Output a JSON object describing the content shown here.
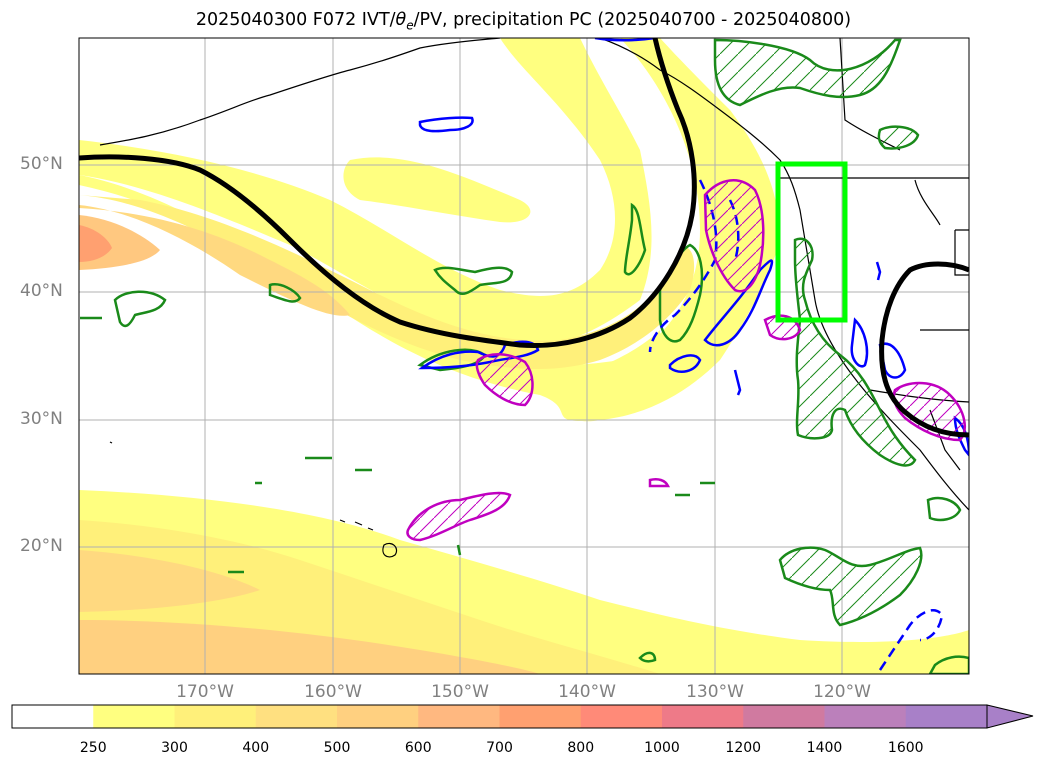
{
  "title": "2025040300 F072 IVT/θe/PV, precipitation PC (2025040700 - 2025040800)",
  "map": {
    "lat_labels": [
      "50°N",
      "40°N",
      "30°N",
      "20°N"
    ],
    "lon_labels": [
      "170°W",
      "160°W",
      "150°W",
      "140°W",
      "130°W",
      "120°W"
    ],
    "colors": {
      "coast": "#000000",
      "jet_contour": "#000000",
      "green_contour": "#1a8a1a",
      "blue_contour": "#0000ff",
      "magenta_contour": "#c000c0",
      "highlight_box": "#00ff00",
      "grid": "#b0b0b0"
    }
  },
  "colorbar": {
    "levels": [
      "250",
      "300",
      "400",
      "500",
      "600",
      "700",
      "800",
      "1000",
      "1200",
      "1400",
      "1600"
    ],
    "colors": [
      "#ffffff",
      "#ffff80",
      "#fff07a",
      "#ffe080",
      "#ffd080",
      "#ffb880",
      "#ffa070",
      "#ff8a78",
      "#ee7a88",
      "#d07aa0",
      "#bb80bb",
      "#a880c8"
    ]
  }
}
